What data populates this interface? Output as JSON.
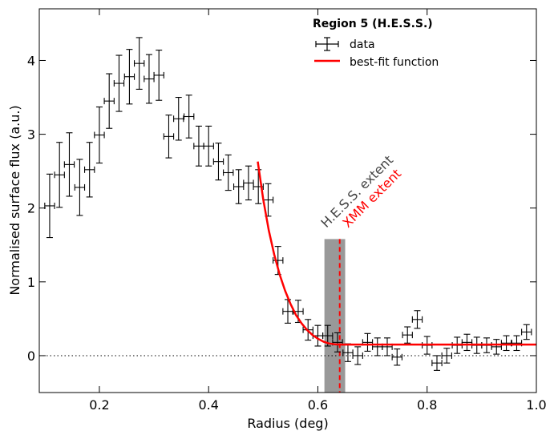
{
  "chart_data": {
    "type": "scatter",
    "title": "",
    "xlabel": "Radius (deg)",
    "ylabel": "Normalised surface flux (a.u.)",
    "xlim": [
      0.09,
      1.0
    ],
    "ylim": [
      -0.5,
      4.7
    ],
    "xticks": [
      0.2,
      0.4,
      0.6,
      0.8,
      1.0
    ],
    "xtick_labels": [
      "0.2",
      "0.4",
      "0.6",
      "0.8",
      "1.0"
    ],
    "yticks": [
      0,
      1,
      2,
      3,
      4
    ],
    "ytick_labels": [
      "0",
      "1",
      "2",
      "3",
      "4"
    ],
    "legend": {
      "title": "Region 5 (H.E.S.S.)",
      "placement": "top-right",
      "entries": [
        {
          "label": "data",
          "style": "errorbar",
          "color": "#000000"
        },
        {
          "label": "best-fit function",
          "style": "line",
          "color": "#ff0000"
        }
      ]
    },
    "series": [
      {
        "name": "data",
        "color": "#000000",
        "x_err": 0.009,
        "points": [
          {
            "x": 0.109,
            "y": 2.03,
            "yerr": 0.43
          },
          {
            "x": 0.127,
            "y": 2.45,
            "yerr": 0.44
          },
          {
            "x": 0.145,
            "y": 2.59,
            "yerr": 0.43
          },
          {
            "x": 0.164,
            "y": 2.28,
            "yerr": 0.38
          },
          {
            "x": 0.182,
            "y": 2.52,
            "yerr": 0.37
          },
          {
            "x": 0.2,
            "y": 2.99,
            "yerr": 0.38
          },
          {
            "x": 0.218,
            "y": 3.45,
            "yerr": 0.37
          },
          {
            "x": 0.236,
            "y": 3.69,
            "yerr": 0.38
          },
          {
            "x": 0.255,
            "y": 3.78,
            "yerr": 0.37
          },
          {
            "x": 0.273,
            "y": 3.96,
            "yerr": 0.35
          },
          {
            "x": 0.291,
            "y": 3.75,
            "yerr": 0.33
          },
          {
            "x": 0.309,
            "y": 3.8,
            "yerr": 0.34
          },
          {
            "x": 0.327,
            "y": 2.97,
            "yerr": 0.29
          },
          {
            "x": 0.345,
            "y": 3.21,
            "yerr": 0.29
          },
          {
            "x": 0.364,
            "y": 3.24,
            "yerr": 0.29
          },
          {
            "x": 0.382,
            "y": 2.84,
            "yerr": 0.27
          },
          {
            "x": 0.4,
            "y": 2.84,
            "yerr": 0.27
          },
          {
            "x": 0.418,
            "y": 2.63,
            "yerr": 0.25
          },
          {
            "x": 0.436,
            "y": 2.48,
            "yerr": 0.24
          },
          {
            "x": 0.455,
            "y": 2.29,
            "yerr": 0.23
          },
          {
            "x": 0.473,
            "y": 2.34,
            "yerr": 0.23
          },
          {
            "x": 0.491,
            "y": 2.29,
            "yerr": 0.23
          },
          {
            "x": 0.509,
            "y": 2.11,
            "yerr": 0.22
          },
          {
            "x": 0.527,
            "y": 1.29,
            "yerr": 0.19
          },
          {
            "x": 0.545,
            "y": 0.6,
            "yerr": 0.16
          },
          {
            "x": 0.564,
            "y": 0.6,
            "yerr": 0.15
          },
          {
            "x": 0.582,
            "y": 0.35,
            "yerr": 0.14
          },
          {
            "x": 0.6,
            "y": 0.27,
            "yerr": 0.14
          },
          {
            "x": 0.618,
            "y": 0.27,
            "yerr": 0.14
          },
          {
            "x": 0.636,
            "y": 0.18,
            "yerr": 0.13
          },
          {
            "x": 0.655,
            "y": 0.04,
            "yerr": 0.12
          },
          {
            "x": 0.673,
            "y": 0.0,
            "yerr": 0.12
          },
          {
            "x": 0.691,
            "y": 0.18,
            "yerr": 0.12
          },
          {
            "x": 0.709,
            "y": 0.12,
            "yerr": 0.12
          },
          {
            "x": 0.727,
            "y": 0.12,
            "yerr": 0.12
          },
          {
            "x": 0.745,
            "y": -0.02,
            "yerr": 0.11
          },
          {
            "x": 0.764,
            "y": 0.28,
            "yerr": 0.11
          },
          {
            "x": 0.782,
            "y": 0.49,
            "yerr": 0.12
          },
          {
            "x": 0.8,
            "y": 0.14,
            "yerr": 0.12
          },
          {
            "x": 0.818,
            "y": -0.1,
            "yerr": 0.1
          },
          {
            "x": 0.836,
            "y": 0.0,
            "yerr": 0.1
          },
          {
            "x": 0.855,
            "y": 0.14,
            "yerr": 0.11
          },
          {
            "x": 0.873,
            "y": 0.18,
            "yerr": 0.11
          },
          {
            "x": 0.891,
            "y": 0.14,
            "yerr": 0.11
          },
          {
            "x": 0.909,
            "y": 0.14,
            "yerr": 0.1
          },
          {
            "x": 0.927,
            "y": 0.12,
            "yerr": 0.1
          },
          {
            "x": 0.945,
            "y": 0.17,
            "yerr": 0.1
          },
          {
            "x": 0.964,
            "y": 0.17,
            "yerr": 0.1
          },
          {
            "x": 0.982,
            "y": 0.32,
            "yerr": 0.1
          }
        ]
      },
      {
        "name": "best-fit function",
        "color": "#ff0000",
        "x": [
          0.49,
          0.5,
          0.51,
          0.52,
          0.53,
          0.54,
          0.55,
          0.56,
          0.57,
          0.58,
          0.59,
          0.6,
          0.61,
          0.62,
          0.63,
          0.64,
          0.65,
          0.7,
          0.8,
          0.9,
          1.0
        ],
        "y": [
          2.63,
          2.12,
          1.7,
          1.37,
          1.1,
          0.88,
          0.7,
          0.55,
          0.44,
          0.35,
          0.28,
          0.23,
          0.19,
          0.165,
          0.155,
          0.15,
          0.15,
          0.15,
          0.15,
          0.15,
          0.15
        ]
      }
    ],
    "reference_lines": [
      {
        "type": "horizontal",
        "y": 0,
        "style": "dotted",
        "color": "#000000"
      }
    ],
    "bands": [
      {
        "x_from": 0.612,
        "x_to": 0.65,
        "y_from": -0.5,
        "y_to": 1.58,
        "color": "#999999",
        "label": "H.E.S.S. extent"
      }
    ],
    "vlines": [
      {
        "x": 0.64,
        "y_from": -0.5,
        "y_to": 1.58,
        "style": "dashed",
        "color": "#ff0000",
        "label": "XMM extent"
      }
    ],
    "annotations": [
      {
        "text": "H.E.S.S. extent",
        "color": "#444444",
        "x": 0.61,
        "y": 1.72,
        "rotation": -45
      },
      {
        "text": "XMM extent",
        "color": "#ff0000",
        "x": 0.645,
        "y": 1.72,
        "rotation": -45
      }
    ]
  }
}
